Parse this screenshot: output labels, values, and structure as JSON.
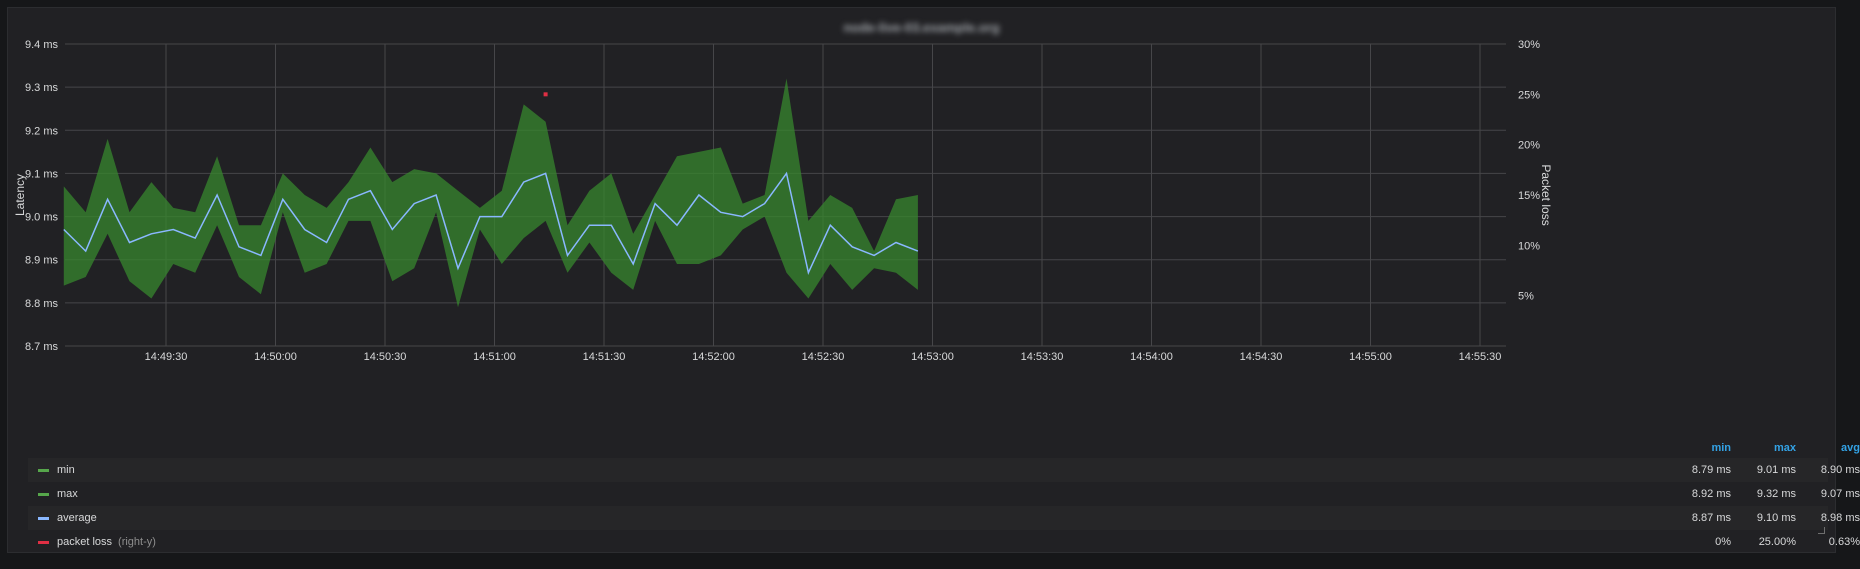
{
  "panel": {
    "title": "node-live-03.example.org"
  },
  "colors": {
    "band_fill": "#37872d",
    "band_stroke": "#56a64b",
    "average": "#8ab8ff",
    "packet_loss": "#e02f44",
    "grid": "#464649",
    "axis_text": "#d8d9da",
    "legend_header": "#33a2e5"
  },
  "chart_data": {
    "type": "line",
    "title": "",
    "ylabel": "Latency",
    "y2label": "Packet loss",
    "ylim": [
      8.7,
      9.4
    ],
    "y2lim": [
      0,
      30
    ],
    "y_ticks": [
      "9.4 ms",
      "9.3 ms",
      "9.2 ms",
      "9.1 ms",
      "9.0 ms",
      "8.9 ms",
      "8.8 ms",
      "8.7 ms"
    ],
    "y2_ticks": [
      "30%",
      "25%",
      "20%",
      "15%",
      "10%",
      "5%"
    ],
    "x_ticks": [
      "14:49:30",
      "14:50:00",
      "14:50:30",
      "14:51:00",
      "14:51:30",
      "14:52:00",
      "14:52:30",
      "14:53:00",
      "14:53:30",
      "14:54:00",
      "14:54:30",
      "14:55:00",
      "14:55:30"
    ],
    "x_start": "14:49:02",
    "x_step_seconds": 6,
    "grid": true,
    "legend_position": "bottom",
    "series": [
      {
        "name": "min",
        "color": "#56a64b",
        "values": [
          8.84,
          8.86,
          8.96,
          8.85,
          8.81,
          8.89,
          8.87,
          8.98,
          8.86,
          8.82,
          9.01,
          8.87,
          8.89,
          8.99,
          8.99,
          8.85,
          8.88,
          9.01,
          8.79,
          8.97,
          8.89,
          8.95,
          8.99,
          8.87,
          8.94,
          8.87,
          8.83,
          8.99,
          8.89,
          8.89,
          8.91,
          8.97,
          9.0,
          8.87,
          8.81,
          8.89,
          8.83,
          8.88,
          8.87,
          8.83
        ]
      },
      {
        "name": "max",
        "color": "#56a64b",
        "values": [
          9.07,
          9.01,
          9.18,
          9.01,
          9.08,
          9.02,
          9.01,
          9.14,
          8.98,
          8.98,
          9.1,
          9.05,
          9.02,
          9.08,
          9.16,
          9.08,
          9.11,
          9.1,
          9.06,
          9.02,
          9.06,
          9.26,
          9.22,
          8.98,
          9.06,
          9.1,
          8.96,
          9.05,
          9.14,
          9.15,
          9.16,
          9.03,
          9.05,
          9.32,
          8.99,
          9.05,
          9.02,
          8.92,
          9.04,
          9.05
        ]
      },
      {
        "name": "average",
        "color": "#8ab8ff",
        "values": [
          8.97,
          8.92,
          9.04,
          8.94,
          8.96,
          8.97,
          8.95,
          9.05,
          8.93,
          8.91,
          9.04,
          8.97,
          8.94,
          9.04,
          9.06,
          8.97,
          9.03,
          9.05,
          8.88,
          9.0,
          9.0,
          9.08,
          9.1,
          8.91,
          8.98,
          8.98,
          8.89,
          9.03,
          8.98,
          9.05,
          9.01,
          9.0,
          9.03,
          9.1,
          8.87,
          8.98,
          8.93,
          8.91,
          8.94,
          8.92
        ]
      },
      {
        "name": "packet loss",
        "axis": "right-y",
        "color": "#e02f44",
        "points": [
          {
            "x": "14:51:14",
            "y": 25
          }
        ]
      }
    ]
  },
  "legend": {
    "headers": {
      "min": "min",
      "max": "max",
      "avg": "avg"
    },
    "rows": [
      {
        "name": "min",
        "suffix": "",
        "color": "#56a64b",
        "min": "8.79 ms",
        "max": "9.01 ms",
        "avg": "8.90 ms"
      },
      {
        "name": "max",
        "suffix": "",
        "color": "#56a64b",
        "min": "8.92 ms",
        "max": "9.32 ms",
        "avg": "9.07 ms"
      },
      {
        "name": "average",
        "suffix": "",
        "color": "#8ab8ff",
        "min": "8.87 ms",
        "max": "9.10 ms",
        "avg": "8.98 ms"
      },
      {
        "name": "packet loss",
        "suffix": "(right-y)",
        "color": "#e02f44",
        "min": "0%",
        "max": "25.00%",
        "avg": "0.63%"
      }
    ]
  }
}
